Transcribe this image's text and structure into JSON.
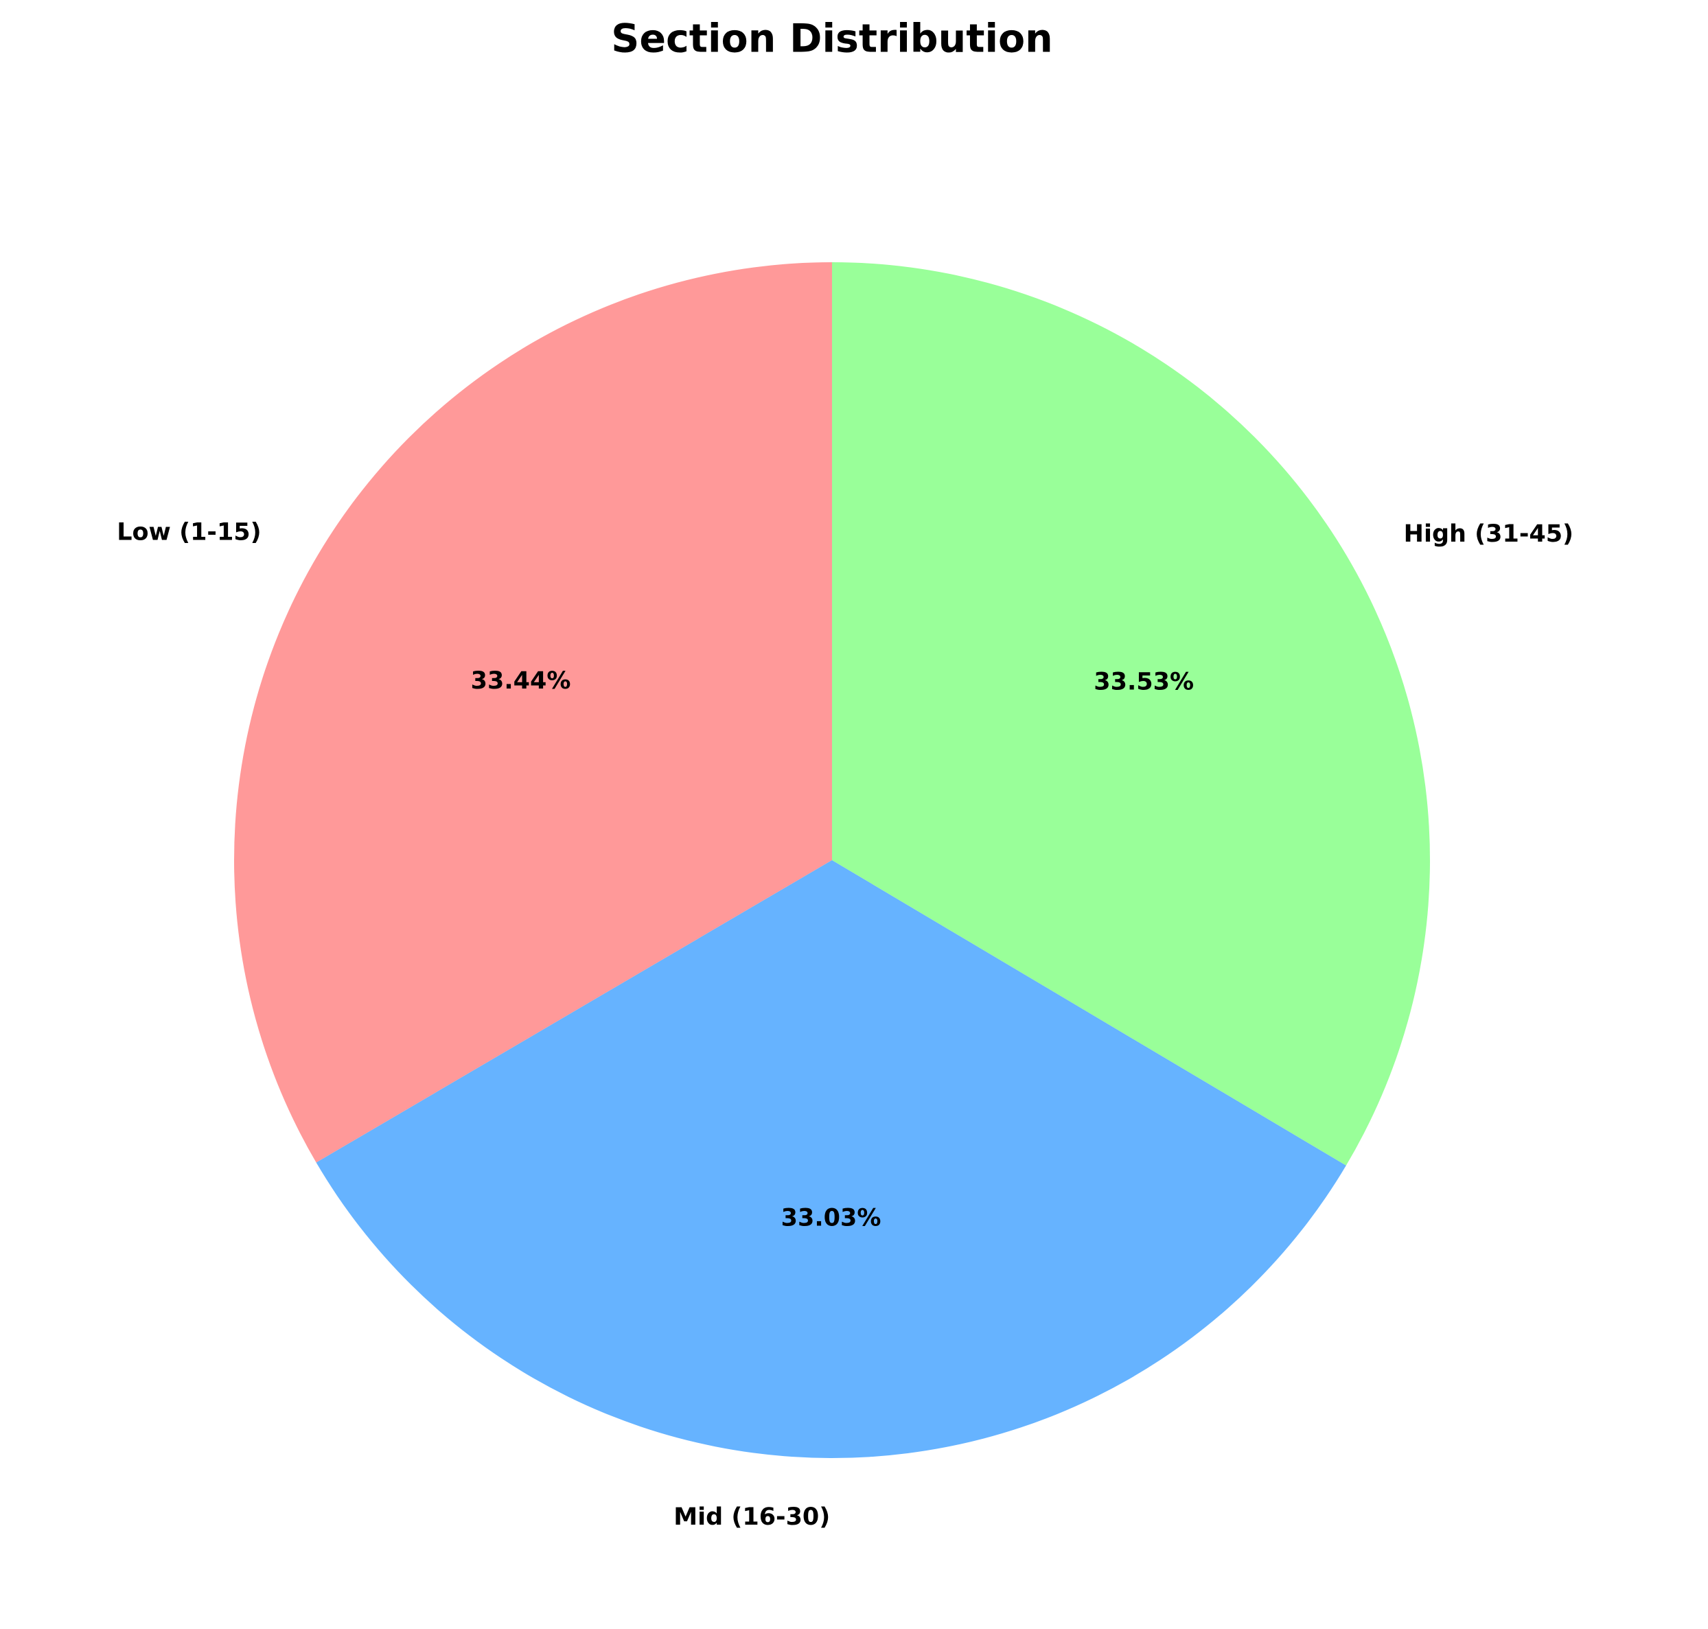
{
  "chart_data": {
    "type": "pie",
    "title": "Section Distribution",
    "categories": [
      "Low (1-15)",
      "Mid (16-30)",
      "High (31-45)"
    ],
    "values": [
      33.44,
      33.03,
      33.53
    ],
    "value_labels": [
      "33.44%",
      "33.03%",
      "33.53%"
    ],
    "colors": [
      "#ff9999",
      "#66b3ff",
      "#99ff99"
    ]
  }
}
